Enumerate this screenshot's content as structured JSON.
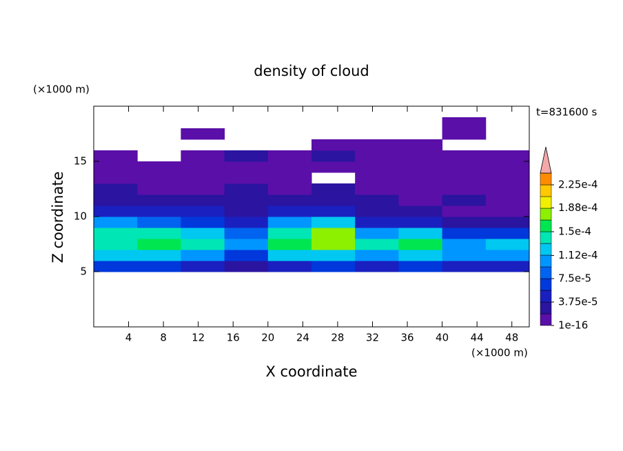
{
  "chart_data": {
    "type": "contour",
    "title": "density of cloud",
    "x_label": "X coordinate",
    "y_label": "Z coordinate",
    "x_unit": "(×1000 m)",
    "y_unit": "(×1000 m)",
    "annotation": "t=831600 s",
    "xlim": [
      0,
      50
    ],
    "ylim": [
      0,
      20
    ],
    "xticks": [
      4,
      8,
      12,
      16,
      20,
      24,
      28,
      32,
      36,
      40,
      44,
      48
    ],
    "yticks": [
      5,
      10,
      15
    ],
    "x_edges": [
      0,
      5,
      10,
      15,
      20,
      25,
      30,
      35,
      40,
      45,
      50
    ],
    "z_edges": [
      5,
      6,
      7,
      8,
      9,
      10,
      11,
      12,
      13,
      14,
      15,
      16,
      17,
      18,
      19
    ],
    "values": [
      [
        5.625e-05,
        5.625e-05,
        3.75e-05,
        1.875e-05,
        3.75e-05,
        5.625e-05,
        3.75e-05,
        5.625e-05,
        3.75e-05,
        3.75e-05
      ],
      [
        0.0001125,
        0.0001125,
        9.375e-05,
        5.625e-05,
        0.0001125,
        0.0001125,
        9.375e-05,
        0.0001125,
        9.375e-05,
        9.375e-05
      ],
      [
        0.00013125,
        0.00015,
        0.00013125,
        9.375e-05,
        0.00015,
        0.00016875,
        0.00013125,
        0.00015,
        9.375e-05,
        0.0001125
      ],
      [
        0.00013125,
        0.00013125,
        0.0001125,
        7.5e-05,
        0.00013125,
        0.00016875,
        9.375e-05,
        0.0001125,
        5.625e-05,
        5.625e-05
      ],
      [
        9.375e-05,
        7.5e-05,
        5.625e-05,
        3.75e-05,
        9.375e-05,
        0.0001125,
        3.75e-05,
        3.75e-05,
        1.875e-05,
        1.875e-05
      ],
      [
        3.75e-05,
        3.75e-05,
        3.75e-05,
        1.875e-05,
        3.75e-05,
        3.75e-05,
        1.875e-05,
        1.875e-05,
        1e-16,
        1e-16
      ],
      [
        1.875e-05,
        1.875e-05,
        1.875e-05,
        1.875e-05,
        1.875e-05,
        1.875e-05,
        1.875e-05,
        1e-16,
        1.875e-05,
        1e-16
      ],
      [
        1.875e-05,
        1e-16,
        1e-16,
        1.875e-05,
        1e-16,
        1.875e-05,
        1e-16,
        1e-16,
        1e-16,
        1e-16
      ],
      [
        1e-16,
        1e-16,
        1e-16,
        1e-16,
        1e-16,
        null,
        1e-16,
        1e-16,
        1e-16,
        1e-16
      ],
      [
        1e-16,
        1e-16,
        1e-16,
        1e-16,
        1e-16,
        1e-16,
        1e-16,
        1e-16,
        1e-16,
        1e-16
      ],
      [
        1e-16,
        null,
        1e-16,
        1.875e-05,
        1e-16,
        1.875e-05,
        1e-16,
        1e-16,
        1e-16,
        1e-16
      ],
      [
        null,
        null,
        null,
        null,
        null,
        1e-16,
        1e-16,
        1e-16,
        null,
        null
      ],
      [
        null,
        null,
        1e-16,
        null,
        null,
        null,
        null,
        null,
        1e-16,
        null
      ],
      [
        null,
        null,
        null,
        null,
        null,
        null,
        null,
        null,
        1e-16,
        null
      ]
    ],
    "colorbar": {
      "levels": [
        1e-16,
        1.875e-05,
        3.75e-05,
        5.625e-05,
        7.5e-05,
        9.375e-05,
        0.0001125,
        0.00013125,
        0.00015,
        0.00016875,
        0.0001875,
        0.00020625,
        0.000225,
        0.00024375
      ],
      "colors": [
        "#5a0fa8",
        "#2a14a0",
        "#1a20c0",
        "#0038dc",
        "#0064f0",
        "#0096ff",
        "#00c8f0",
        "#00e6b4",
        "#00e650",
        "#8cf000",
        "#f0f000",
        "#ffc800",
        "#ff8c00"
      ],
      "over_color": "#f4a8a8",
      "ticks": [
        {
          "value": 1e-16,
          "label": "1e-16"
        },
        {
          "value": 3.75e-05,
          "label": "3.75e-5"
        },
        {
          "value": 7.5e-05,
          "label": "7.5e-5"
        },
        {
          "value": 0.000112,
          "label": "1.12e-4"
        },
        {
          "value": 0.00015,
          "label": "1.5e-4"
        },
        {
          "value": 0.000188,
          "label": "1.88e-4"
        },
        {
          "value": 0.000225,
          "label": "2.25e-4"
        }
      ]
    }
  }
}
